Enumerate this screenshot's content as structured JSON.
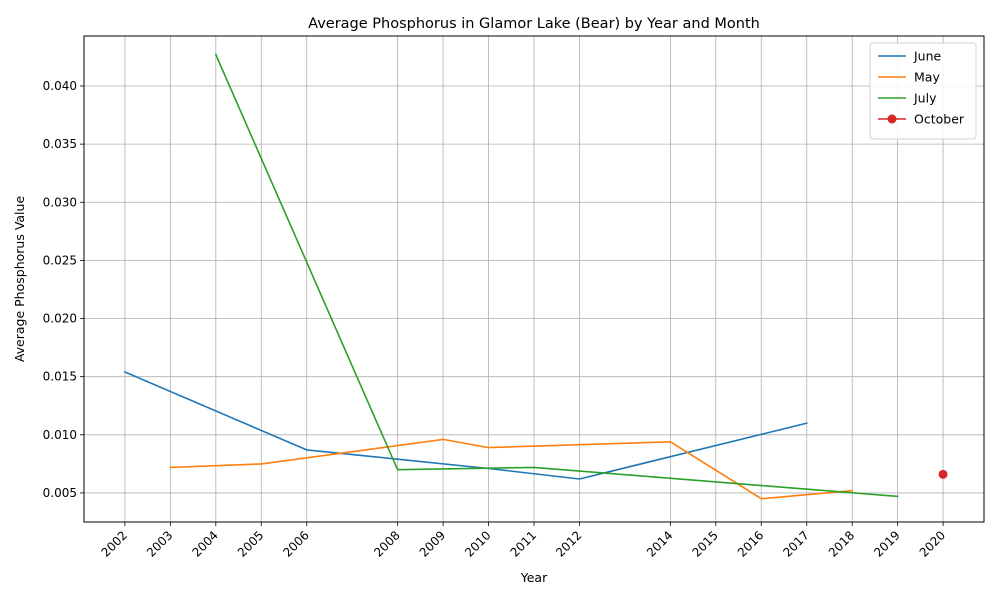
{
  "chart_data": {
    "type": "line",
    "title": "Average Phosphorus in Glamor Lake (Bear) by Year and Month",
    "xlabel": "Year",
    "ylabel": "Average Phosphorus Value",
    "xlim": [
      2001.1,
      2020.9
    ],
    "ylim": [
      0.0025,
      0.0443
    ],
    "x_ticks": [
      2002,
      2003,
      2004,
      2005,
      2006,
      2008,
      2009,
      2010,
      2011,
      2012,
      2014,
      2015,
      2016,
      2017,
      2018,
      2019,
      2020
    ],
    "x_tick_labels": [
      "2002",
      "2003",
      "2004",
      "2005",
      "2006",
      "2008",
      "2009",
      "2010",
      "2011",
      "2012",
      "2014",
      "2015",
      "2016",
      "2017",
      "2018",
      "2019",
      "2020"
    ],
    "y_ticks": [
      0.005,
      0.01,
      0.015,
      0.02,
      0.025,
      0.03,
      0.035,
      0.04
    ],
    "y_tick_labels": [
      "0.005",
      "0.010",
      "0.015",
      "0.020",
      "0.025",
      "0.030",
      "0.035",
      "0.040"
    ],
    "grid": true,
    "legend_position": "top-right",
    "series": [
      {
        "name": "June",
        "color": "#1f77b4",
        "marker": "none",
        "points": [
          [
            2002,
            0.0154
          ],
          [
            2006,
            0.0087
          ],
          [
            2008,
            0.0079
          ],
          [
            2010,
            0.0071
          ],
          [
            2012,
            0.0062
          ],
          [
            2017,
            0.011
          ]
        ]
      },
      {
        "name": "May",
        "color": "#ff7f0e",
        "marker": "none",
        "points": [
          [
            2003,
            0.0072
          ],
          [
            2005,
            0.0075
          ],
          [
            2009,
            0.0096
          ],
          [
            2010,
            0.0089
          ],
          [
            2014,
            0.0094
          ],
          [
            2016,
            0.0045
          ],
          [
            2018,
            0.0052
          ]
        ]
      },
      {
        "name": "July",
        "color": "#2ca02c",
        "marker": "none",
        "points": [
          [
            2004,
            0.0427
          ],
          [
            2008,
            0.007
          ],
          [
            2011,
            0.0072
          ],
          [
            2019,
            0.0047
          ]
        ]
      },
      {
        "name": "October",
        "color": "#d62728",
        "marker": "circle",
        "points": [
          [
            2020,
            0.0066
          ]
        ]
      }
    ]
  }
}
